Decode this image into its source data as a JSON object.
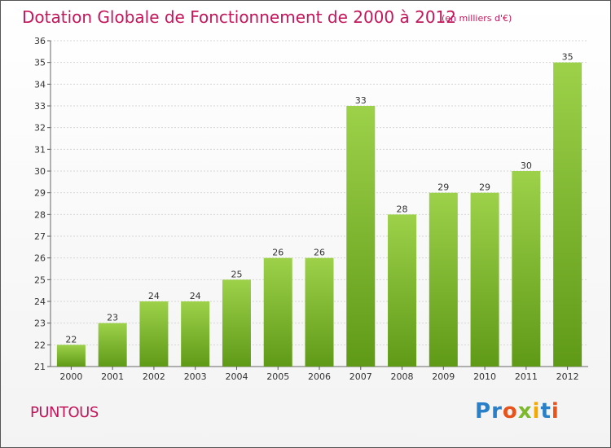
{
  "title": "Dotation Globale de Fonctionnement de 2000 à 2012",
  "subtitle": "(en milliers d'€)",
  "commune": "PUNTOUS",
  "logo": {
    "letters": [
      "P",
      "r",
      "o",
      "x",
      "i",
      "t",
      "i"
    ],
    "colors": [
      "#2a7fc9",
      "#2a7fc9",
      "#e8531c",
      "#7cba2c",
      "#f2a900",
      "#2a7fc9",
      "#e8531c"
    ]
  },
  "chart_data": {
    "type": "bar",
    "categories": [
      "2000",
      "2001",
      "2002",
      "2003",
      "2004",
      "2005",
      "2006",
      "2007",
      "2008",
      "2009",
      "2010",
      "2011",
      "2012"
    ],
    "values": [
      22,
      23,
      24,
      24,
      25,
      26,
      26,
      33,
      28,
      29,
      29,
      30,
      35
    ],
    "title": "Dotation Globale de Fonctionnement de 2000 à 2012",
    "xlabel": "",
    "ylabel": "",
    "ylim": [
      21,
      36
    ],
    "yticks": [
      21,
      22,
      23,
      24,
      25,
      26,
      27,
      28,
      29,
      30,
      31,
      32,
      33,
      34,
      35,
      36
    ],
    "grid": true,
    "bar_color_top": "#9dd14a",
    "bar_color_bottom": "#5f9a17"
  }
}
